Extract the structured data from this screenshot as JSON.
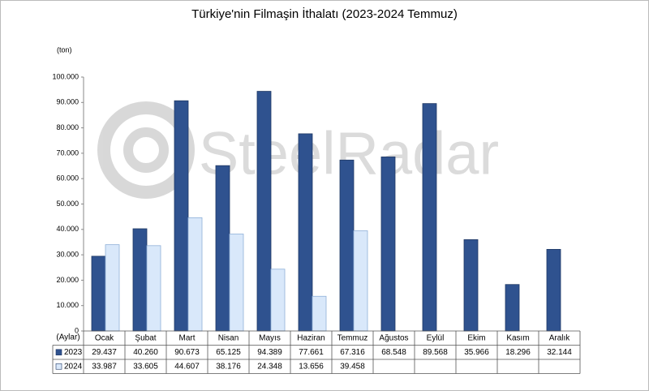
{
  "chart_data": {
    "type": "bar",
    "title": "Türkiye'nin Filmaşin İthalatı (2023-2024 Temmuz)",
    "y_unit": "(ton)",
    "x_label": "(Aylar)",
    "watermark": "SteelRadar",
    "categories": [
      "Ocak",
      "Şubat",
      "Mart",
      "Nisan",
      "Mayıs",
      "Haziran",
      "Temmuz",
      "Ağustos",
      "Eylül",
      "Ekim",
      "Kasım",
      "Aralık"
    ],
    "series": [
      {
        "name": "2023",
        "color": "#2f528f",
        "values": [
          29437,
          40260,
          90673,
          65125,
          94389,
          77661,
          67316,
          68548,
          89568,
          35966,
          18296,
          32144
        ],
        "value_labels": [
          "29.437",
          "40.260",
          "90.673",
          "65.125",
          "94.389",
          "77.661",
          "67.316",
          "68.548",
          "89.568",
          "35.966",
          "18.296",
          "32.144"
        ]
      },
      {
        "name": "2024",
        "color": "#d9e8fa",
        "values": [
          33987,
          33605,
          44607,
          38176,
          24348,
          13656,
          39458,
          null,
          null,
          null,
          null,
          null
        ],
        "value_labels": [
          "33.987",
          "33.605",
          "44.607",
          "38.176",
          "24.348",
          "13.656",
          "39.458",
          null,
          null,
          null,
          null,
          null
        ]
      }
    ],
    "ylim": [
      0,
      100000
    ],
    "yticks": [
      0,
      {
        "value": 10000,
        "label": "10.000"
      },
      {
        "value": 20000,
        "label": "20.000"
      },
      {
        "value": 30000,
        "label": "30.000"
      },
      {
        "value": 40000,
        "label": "40.000"
      },
      {
        "value": 50000,
        "label": "50.000"
      },
      {
        "value": 60000,
        "label": "60.000"
      },
      {
        "value": 70000,
        "label": "70.000"
      },
      {
        "value": 80000,
        "label": "80.000"
      },
      {
        "value": 90000,
        "label": "90.000"
      },
      {
        "value": 100000,
        "label": "100.000"
      }
    ],
    "grid": false
  }
}
